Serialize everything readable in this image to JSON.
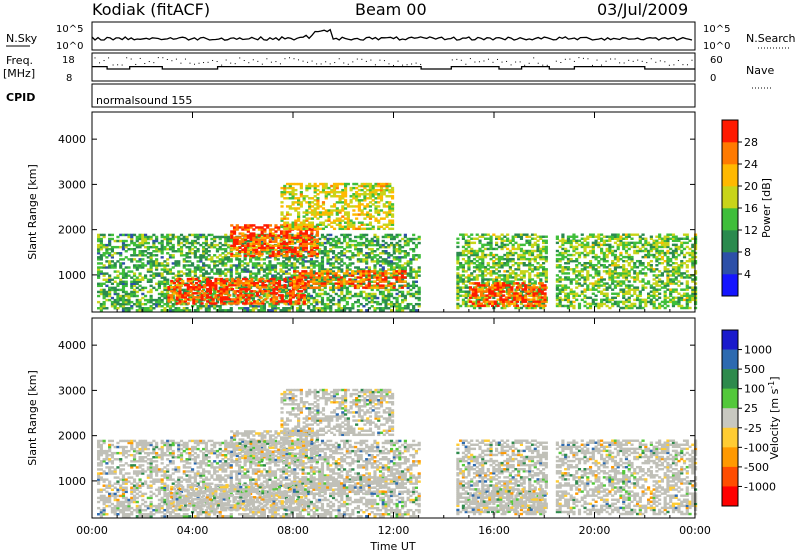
{
  "header": {
    "station": "Kodiak (fitACF)",
    "beam": "Beam 00",
    "date": "03/Jul/2009"
  },
  "strip_nsky": {
    "left_label": "N.Sky",
    "right_label": "N.Search",
    "left_ticks": [
      "10^5",
      "10^0"
    ],
    "right_ticks": [
      "10^5",
      "10^0"
    ]
  },
  "strip_freq": {
    "left_label_1": "Freq.",
    "left_label_2": "[MHz]",
    "right_label": "Nave",
    "left_ticks": [
      "18",
      "8"
    ],
    "right_ticks": [
      "60",
      "0"
    ]
  },
  "strip_cpid": {
    "label": "CPID",
    "value": "normalsound  155"
  },
  "chart_data": [
    {
      "type": "heatmap",
      "panel": "power",
      "ylabel": "Slant Range [km]",
      "xlabel": "",
      "yticks": [
        "1000",
        "2000",
        "3000",
        "4000"
      ],
      "xlim": [
        0,
        24
      ],
      "ylim": [
        180,
        4600
      ],
      "colorbar": {
        "label": "Power [dB]",
        "ticks": [
          "4",
          "8",
          "12",
          "16",
          "20",
          "24",
          "28"
        ],
        "colors": [
          "#1515ff",
          "#2d50a8",
          "#2a8a4e",
          "#3fbe3a",
          "#c8d41a",
          "#ffb900",
          "#ff7a00",
          "#ff1a00"
        ],
        "range": [
          0,
          30
        ]
      },
      "data_gap_hours": [
        [
          13.2,
          14.3
        ],
        [
          18.1,
          18.4
        ]
      ],
      "echo_regions": [
        {
          "t_start": 0.2,
          "t_end": 13.0,
          "r_start": 200,
          "r_end": 1900,
          "db": 12
        },
        {
          "t_start": 3.0,
          "t_end": 8.5,
          "r_start": 350,
          "r_end": 900,
          "db": 27
        },
        {
          "t_start": 5.5,
          "t_end": 9.0,
          "r_start": 1400,
          "r_end": 2100,
          "db": 26
        },
        {
          "t_start": 8.0,
          "t_end": 12.5,
          "r_start": 700,
          "r_end": 1100,
          "db": 25
        },
        {
          "t_start": 7.5,
          "t_end": 12.0,
          "r_start": 2000,
          "r_end": 3000,
          "db": 18
        },
        {
          "t_start": 14.5,
          "t_end": 24.0,
          "r_start": 250,
          "r_end": 1900,
          "db": 14
        },
        {
          "t_start": 15.0,
          "t_end": 18.0,
          "r_start": 300,
          "r_end": 800,
          "db": 26
        }
      ]
    },
    {
      "type": "heatmap",
      "panel": "velocity",
      "ylabel": "Slant Range [km]",
      "xlabel": "Time UT",
      "yticks": [
        "1000",
        "2000",
        "3000",
        "4000"
      ],
      "xticks": [
        "00:00",
        "04:00",
        "08:00",
        "12:00",
        "16:00",
        "20:00",
        "00:00"
      ],
      "xlim": [
        0,
        24
      ],
      "ylim": [
        180,
        4600
      ],
      "colorbar": {
        "label_main": "Velocity [m s",
        "label_sup": "-1",
        "label_end": "]",
        "ticks": [
          "1000",
          "500",
          "100",
          "25",
          "-25",
          "-100",
          "-500",
          "-1000"
        ],
        "colors": [
          "#1a1acc",
          "#2d6ab0",
          "#2e8a4c",
          "#53c83a",
          "#c8c8c0",
          "#ffcc33",
          "#ff9900",
          "#ff4d00",
          "#ff0000"
        ]
      },
      "dominant_value": "0",
      "data_gap_hours": [
        [
          13.2,
          14.3
        ],
        [
          18.1,
          18.4
        ]
      ]
    }
  ],
  "colors": {
    "ground_scatter": "#c0c0b8",
    "frame": "#000000"
  }
}
